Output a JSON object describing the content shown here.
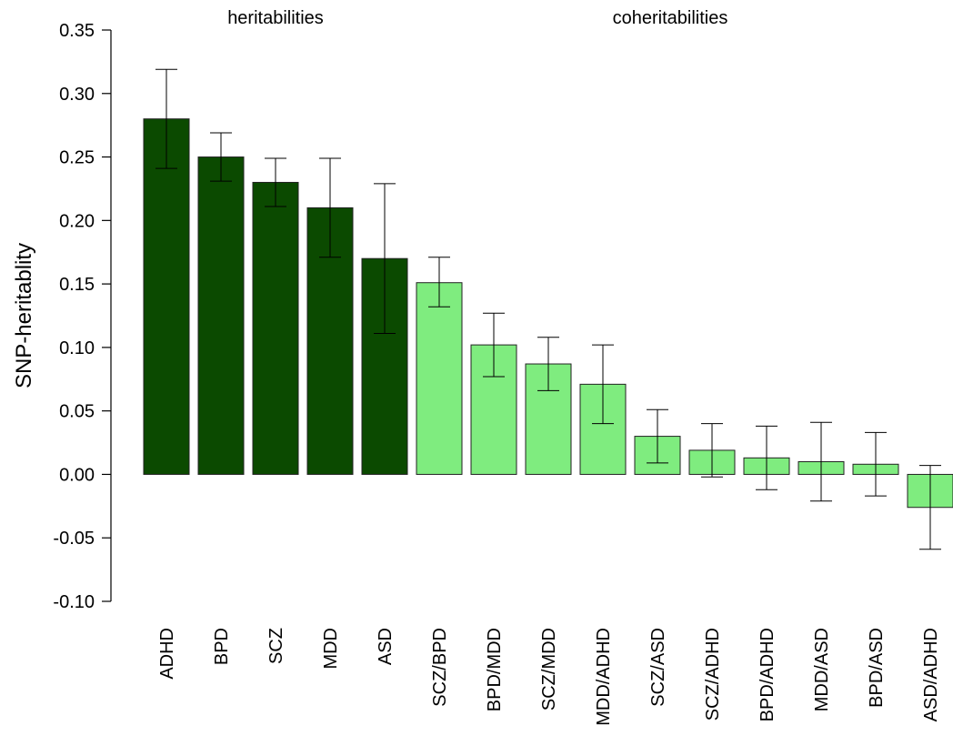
{
  "chart_data": {
    "type": "bar",
    "title": "",
    "xlabel": "",
    "ylabel": "SNP-heritablity",
    "ylim": [
      -0.1,
      0.35
    ],
    "yticks": [
      -0.1,
      -0.05,
      0.0,
      0.05,
      0.1,
      0.15,
      0.2,
      0.25,
      0.3,
      0.35
    ],
    "ytick_labels": [
      "-0.10",
      "-0.05",
      "0.00",
      "0.05",
      "0.10",
      "0.15",
      "0.20",
      "0.25",
      "0.30",
      "0.35"
    ],
    "grid": false,
    "groups": [
      {
        "label": "heritabilities",
        "categories": [
          "ADHD",
          "BPD",
          "SCZ",
          "MDD",
          "ASD"
        ],
        "color": "#0b4a00"
      },
      {
        "label": "coheritabilities",
        "categories": [
          "SCZ/BPD",
          "BPD/MDD",
          "SCZ/MDD",
          "MDD/ADHD",
          "SCZ/ASD",
          "SCZ/ADHD",
          "BPD/ADHD",
          "MDD/ASD",
          "BPD/ASD",
          "ASD/ADHD"
        ],
        "color": "#7fec7f"
      }
    ],
    "categories": [
      "ADHD",
      "BPD",
      "SCZ",
      "MDD",
      "ASD",
      "SCZ/BPD",
      "BPD/MDD",
      "SCZ/MDD",
      "MDD/ADHD",
      "SCZ/ASD",
      "SCZ/ADHD",
      "BPD/ADHD",
      "MDD/ASD",
      "BPD/ASD",
      "ASD/ADHD"
    ],
    "values": [
      0.28,
      0.25,
      0.23,
      0.21,
      0.17,
      0.151,
      0.102,
      0.087,
      0.071,
      0.03,
      0.019,
      0.013,
      0.01,
      0.008,
      -0.026
    ],
    "error_lower": [
      0.241,
      0.231,
      0.211,
      0.171,
      0.111,
      0.132,
      0.077,
      0.066,
      0.04,
      0.009,
      -0.002,
      -0.012,
      -0.021,
      -0.017,
      -0.059
    ],
    "error_upper": [
      0.319,
      0.269,
      0.249,
      0.249,
      0.229,
      0.171,
      0.127,
      0.108,
      0.102,
      0.051,
      0.04,
      0.038,
      0.041,
      0.033,
      0.007
    ],
    "colors": [
      "#0b4a00",
      "#0b4a00",
      "#0b4a00",
      "#0b4a00",
      "#0b4a00",
      "#7fec7f",
      "#7fec7f",
      "#7fec7f",
      "#7fec7f",
      "#7fec7f",
      "#7fec7f",
      "#7fec7f",
      "#7fec7f",
      "#7fec7f",
      "#7fec7f"
    ]
  }
}
